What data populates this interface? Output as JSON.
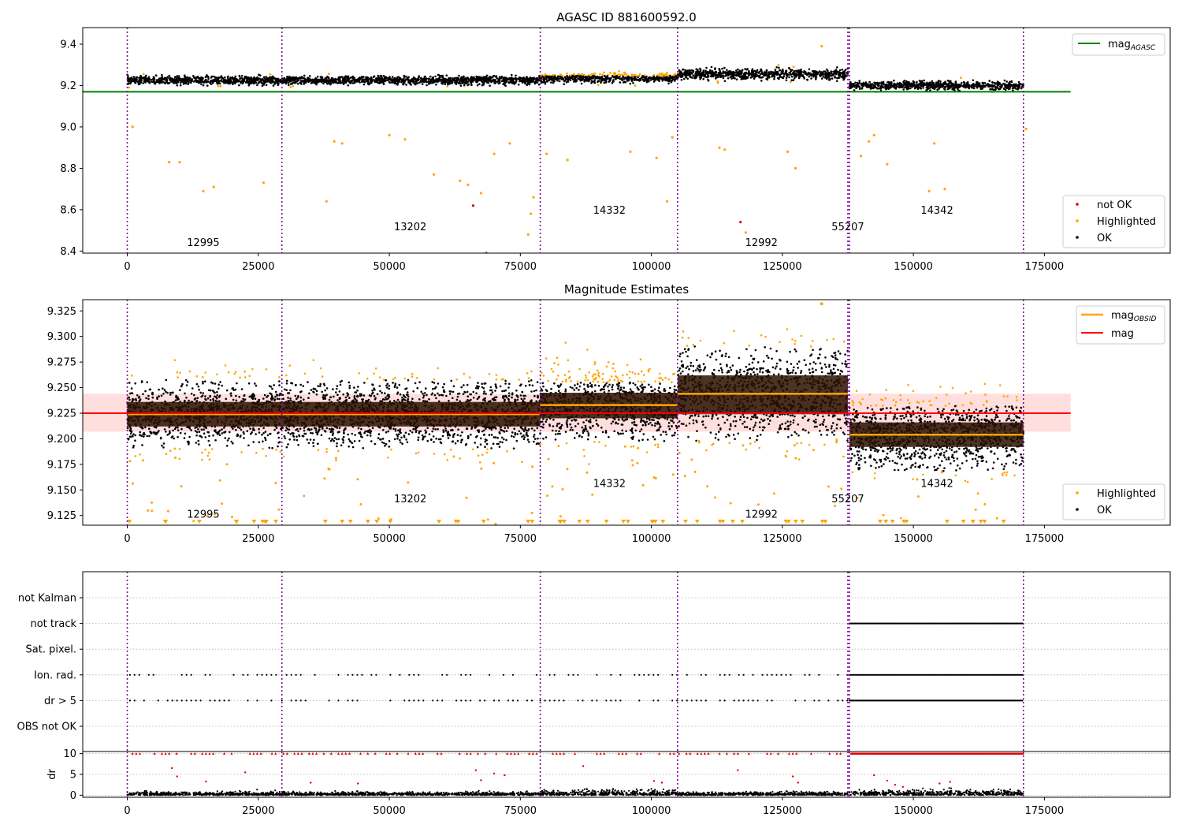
{
  "colors": {
    "ok": "#000000",
    "not_ok": "#e00000",
    "highlighted": "#ffa500",
    "agasc_line": "#008000",
    "mag_line": "#ff0000",
    "obsid_line": "#ffa500",
    "band_fill": "#ffc8c8",
    "obs_boundary": "#7f0098",
    "flag_point": "#000000",
    "dr_flag_point": "#e00000"
  },
  "obs_boundaries": [
    0,
    29500,
    78800,
    105000,
    137500,
    137800,
    171000
  ],
  "observations": [
    {
      "obsid": "12995",
      "start": 0,
      "end": 29500,
      "label_x": 14500,
      "top_label_y": 8.44,
      "mid_label_y": 9.126,
      "mag_obsid": 9.224,
      "band_lo": 9.212,
      "band_hi": 9.236,
      "spread": 0.032,
      "top_mean": 9.225,
      "top_spread": 0.022
    },
    {
      "obsid": "13202",
      "start": 29500,
      "end": 78800,
      "label_x": 54000,
      "top_label_y": 8.515,
      "mid_label_y": 9.141,
      "mag_obsid": 9.224,
      "band_lo": 9.212,
      "band_hi": 9.236,
      "spread": 0.032,
      "top_mean": 9.225,
      "top_spread": 0.022
    },
    {
      "obsid": "14332",
      "start": 78800,
      "end": 105000,
      "label_x": 92000,
      "top_label_y": 8.595,
      "mid_label_y": 9.156,
      "mag_obsid": 9.233,
      "band_lo": 9.22,
      "band_hi": 9.245,
      "spread": 0.034,
      "top_mean": 9.235,
      "top_spread": 0.024
    },
    {
      "obsid": "12992",
      "start": 105000,
      "end": 137500,
      "label_x": 121000,
      "top_label_y": 8.44,
      "mid_label_y": 9.126,
      "mag_obsid": 9.244,
      "band_lo": 9.224,
      "band_hi": 9.262,
      "spread": 0.044,
      "top_mean": 9.255,
      "top_spread": 0.028
    },
    {
      "obsid": "55207",
      "start": 137500,
      "end": 137800,
      "label_x": 137500,
      "top_label_y": 8.515,
      "mid_label_y": 9.141,
      "mag_obsid": 9.204,
      "band_lo": 9.192,
      "band_hi": 9.216,
      "spread": 0.03,
      "top_mean": 9.2,
      "top_spread": 0.02
    },
    {
      "obsid": "14342",
      "start": 137800,
      "end": 171000,
      "label_x": 154500,
      "top_label_y": 8.595,
      "mid_label_y": 9.156,
      "mag_obsid": 9.204,
      "band_lo": 9.192,
      "band_hi": 9.216,
      "spread": 0.034,
      "top_mean": 9.2,
      "top_spread": 0.022
    }
  ],
  "chart_data": [
    {
      "id": "top",
      "type": "scatter",
      "title": "AGASC ID 881600592.0",
      "xlim": [
        -8500,
        199000
      ],
      "ylim": [
        8.39,
        9.48
      ],
      "xticks": [
        0,
        25000,
        50000,
        75000,
        100000,
        125000,
        150000,
        175000
      ],
      "yticks": [
        8.4,
        8.6,
        8.8,
        9.0,
        9.2,
        9.4
      ],
      "yticklabels": [
        "8.4",
        "8.6",
        "8.8",
        "9.0",
        "9.2",
        "9.4"
      ],
      "mag_agasc": 9.17,
      "hline_xrange": [
        -8500,
        180000
      ],
      "series": [
        {
          "name": "not OK",
          "points": [
            [
              66000,
              8.62
            ],
            [
              68500,
              8.39
            ],
            [
              117000,
              8.54
            ]
          ]
        },
        {
          "name": "Highlighted",
          "points": [
            [
              1000,
              9.0
            ],
            [
              8000,
              8.83
            ],
            [
              10000,
              8.83
            ],
            [
              16500,
              8.71
            ],
            [
              14500,
              8.69
            ],
            [
              26000,
              8.73
            ],
            [
              38000,
              8.64
            ],
            [
              39500,
              8.93
            ],
            [
              41000,
              8.92
            ],
            [
              50000,
              8.96
            ],
            [
              53000,
              8.94
            ],
            [
              58500,
              8.77
            ],
            [
              63500,
              8.74
            ],
            [
              65000,
              8.72
            ],
            [
              67500,
              8.68
            ],
            [
              70000,
              8.87
            ],
            [
              73000,
              8.92
            ],
            [
              76500,
              8.48
            ],
            [
              77000,
              8.58
            ],
            [
              77500,
              8.66
            ],
            [
              80000,
              8.87
            ],
            [
              84000,
              8.84
            ],
            [
              96000,
              8.88
            ],
            [
              101000,
              8.85
            ],
            [
              103000,
              8.64
            ],
            [
              104000,
              8.95
            ],
            [
              113000,
              8.9
            ],
            [
              114000,
              8.89
            ],
            [
              118000,
              8.49
            ],
            [
              126000,
              8.88
            ],
            [
              127500,
              8.8
            ],
            [
              132500,
              9.39
            ],
            [
              140000,
              8.86
            ],
            [
              141500,
              8.93
            ],
            [
              142500,
              8.96
            ],
            [
              145000,
              8.82
            ],
            [
              153000,
              8.69
            ],
            [
              154000,
              8.92
            ],
            [
              156000,
              8.7
            ],
            [
              171500,
              8.99
            ]
          ]
        }
      ],
      "legend_line": {
        "label_base": "mag",
        "label_sub": "AGASC"
      },
      "legend_points": [
        "not OK",
        "Highlighted",
        "OK"
      ]
    },
    {
      "id": "mid",
      "type": "scatter",
      "title": "Magnitude Estimates",
      "xlim": [
        -8500,
        199000
      ],
      "ylim": [
        9.1155,
        9.336
      ],
      "xticks": [
        0,
        25000,
        50000,
        75000,
        100000,
        125000,
        150000,
        175000
      ],
      "yticks": [
        9.125,
        9.15,
        9.175,
        9.2,
        9.225,
        9.25,
        9.275,
        9.3,
        9.325
      ],
      "yticklabels": [
        "9.125",
        "9.150",
        "9.175",
        "9.200",
        "9.225",
        "9.250",
        "9.275",
        "9.300",
        "9.325"
      ],
      "mag": 9.225,
      "mag_band": [
        9.207,
        9.244
      ],
      "hline_xrange": [
        -8500,
        180000
      ],
      "legend_lines": [
        {
          "label_base": "mag",
          "label_sub": "OBSID"
        },
        {
          "label_base": "mag",
          "label_sub": ""
        }
      ],
      "legend_points": [
        "Highlighted",
        "OK"
      ],
      "annotated_points": [
        [
          132500,
          9.332
        ]
      ]
    },
    {
      "id": "flags",
      "type": "scatter",
      "categories": [
        "not Kalman",
        "not track",
        "Sat. pixel.",
        "Ion. rad.",
        "dr > 5",
        "OBS not OK"
      ],
      "xlim": [
        -8500,
        199000
      ],
      "tracks": {
        "not track": [
          [
            3500,
            3600
          ],
          [
            132300,
            132500
          ],
          [
            137800,
            171000
          ]
        ],
        "Ion. rad.": [
          [
            500,
            29500
          ],
          [
            29500,
            78800
          ],
          [
            78800,
            105000
          ],
          [
            105000,
            137500
          ],
          [
            137800,
            171000
          ]
        ],
        "dr > 5": [
          [
            500,
            29500
          ],
          [
            29500,
            78800
          ],
          [
            78800,
            105000
          ],
          [
            105000,
            137500
          ],
          [
            137800,
            171000
          ]
        ]
      }
    },
    {
      "id": "dr",
      "type": "scatter",
      "ylabel": "dr",
      "xlim": [
        -8500,
        199000
      ],
      "ylim": [
        -0.5,
        10.5
      ],
      "yticks": [
        0,
        5,
        10
      ],
      "yticklabels": [
        "0",
        "5",
        "10"
      ],
      "xticks": [
        0,
        25000,
        50000,
        75000,
        100000,
        125000,
        150000,
        175000
      ],
      "outliers": [
        [
          8500,
          6.5
        ],
        [
          9500,
          4.5
        ],
        [
          15000,
          3.3
        ],
        [
          22500,
          5.5
        ],
        [
          35000,
          3
        ],
        [
          44000,
          2.8
        ],
        [
          66500,
          6
        ],
        [
          67500,
          3.6
        ],
        [
          70000,
          5.2
        ],
        [
          72000,
          4.8
        ],
        [
          87000,
          7
        ],
        [
          100500,
          3.4
        ],
        [
          102000,
          3
        ],
        [
          116500,
          6
        ],
        [
          127000,
          4.5
        ],
        [
          128000,
          3
        ],
        [
          142500,
          4.8
        ],
        [
          145000,
          3.5
        ],
        [
          146500,
          2.5
        ],
        [
          148000,
          2
        ],
        [
          155000,
          2.8
        ],
        [
          157000,
          3.2
        ]
      ]
    }
  ],
  "xtick_labels": [
    "0",
    "25000",
    "50000",
    "75000",
    "100000",
    "125000",
    "150000",
    "175000"
  ]
}
